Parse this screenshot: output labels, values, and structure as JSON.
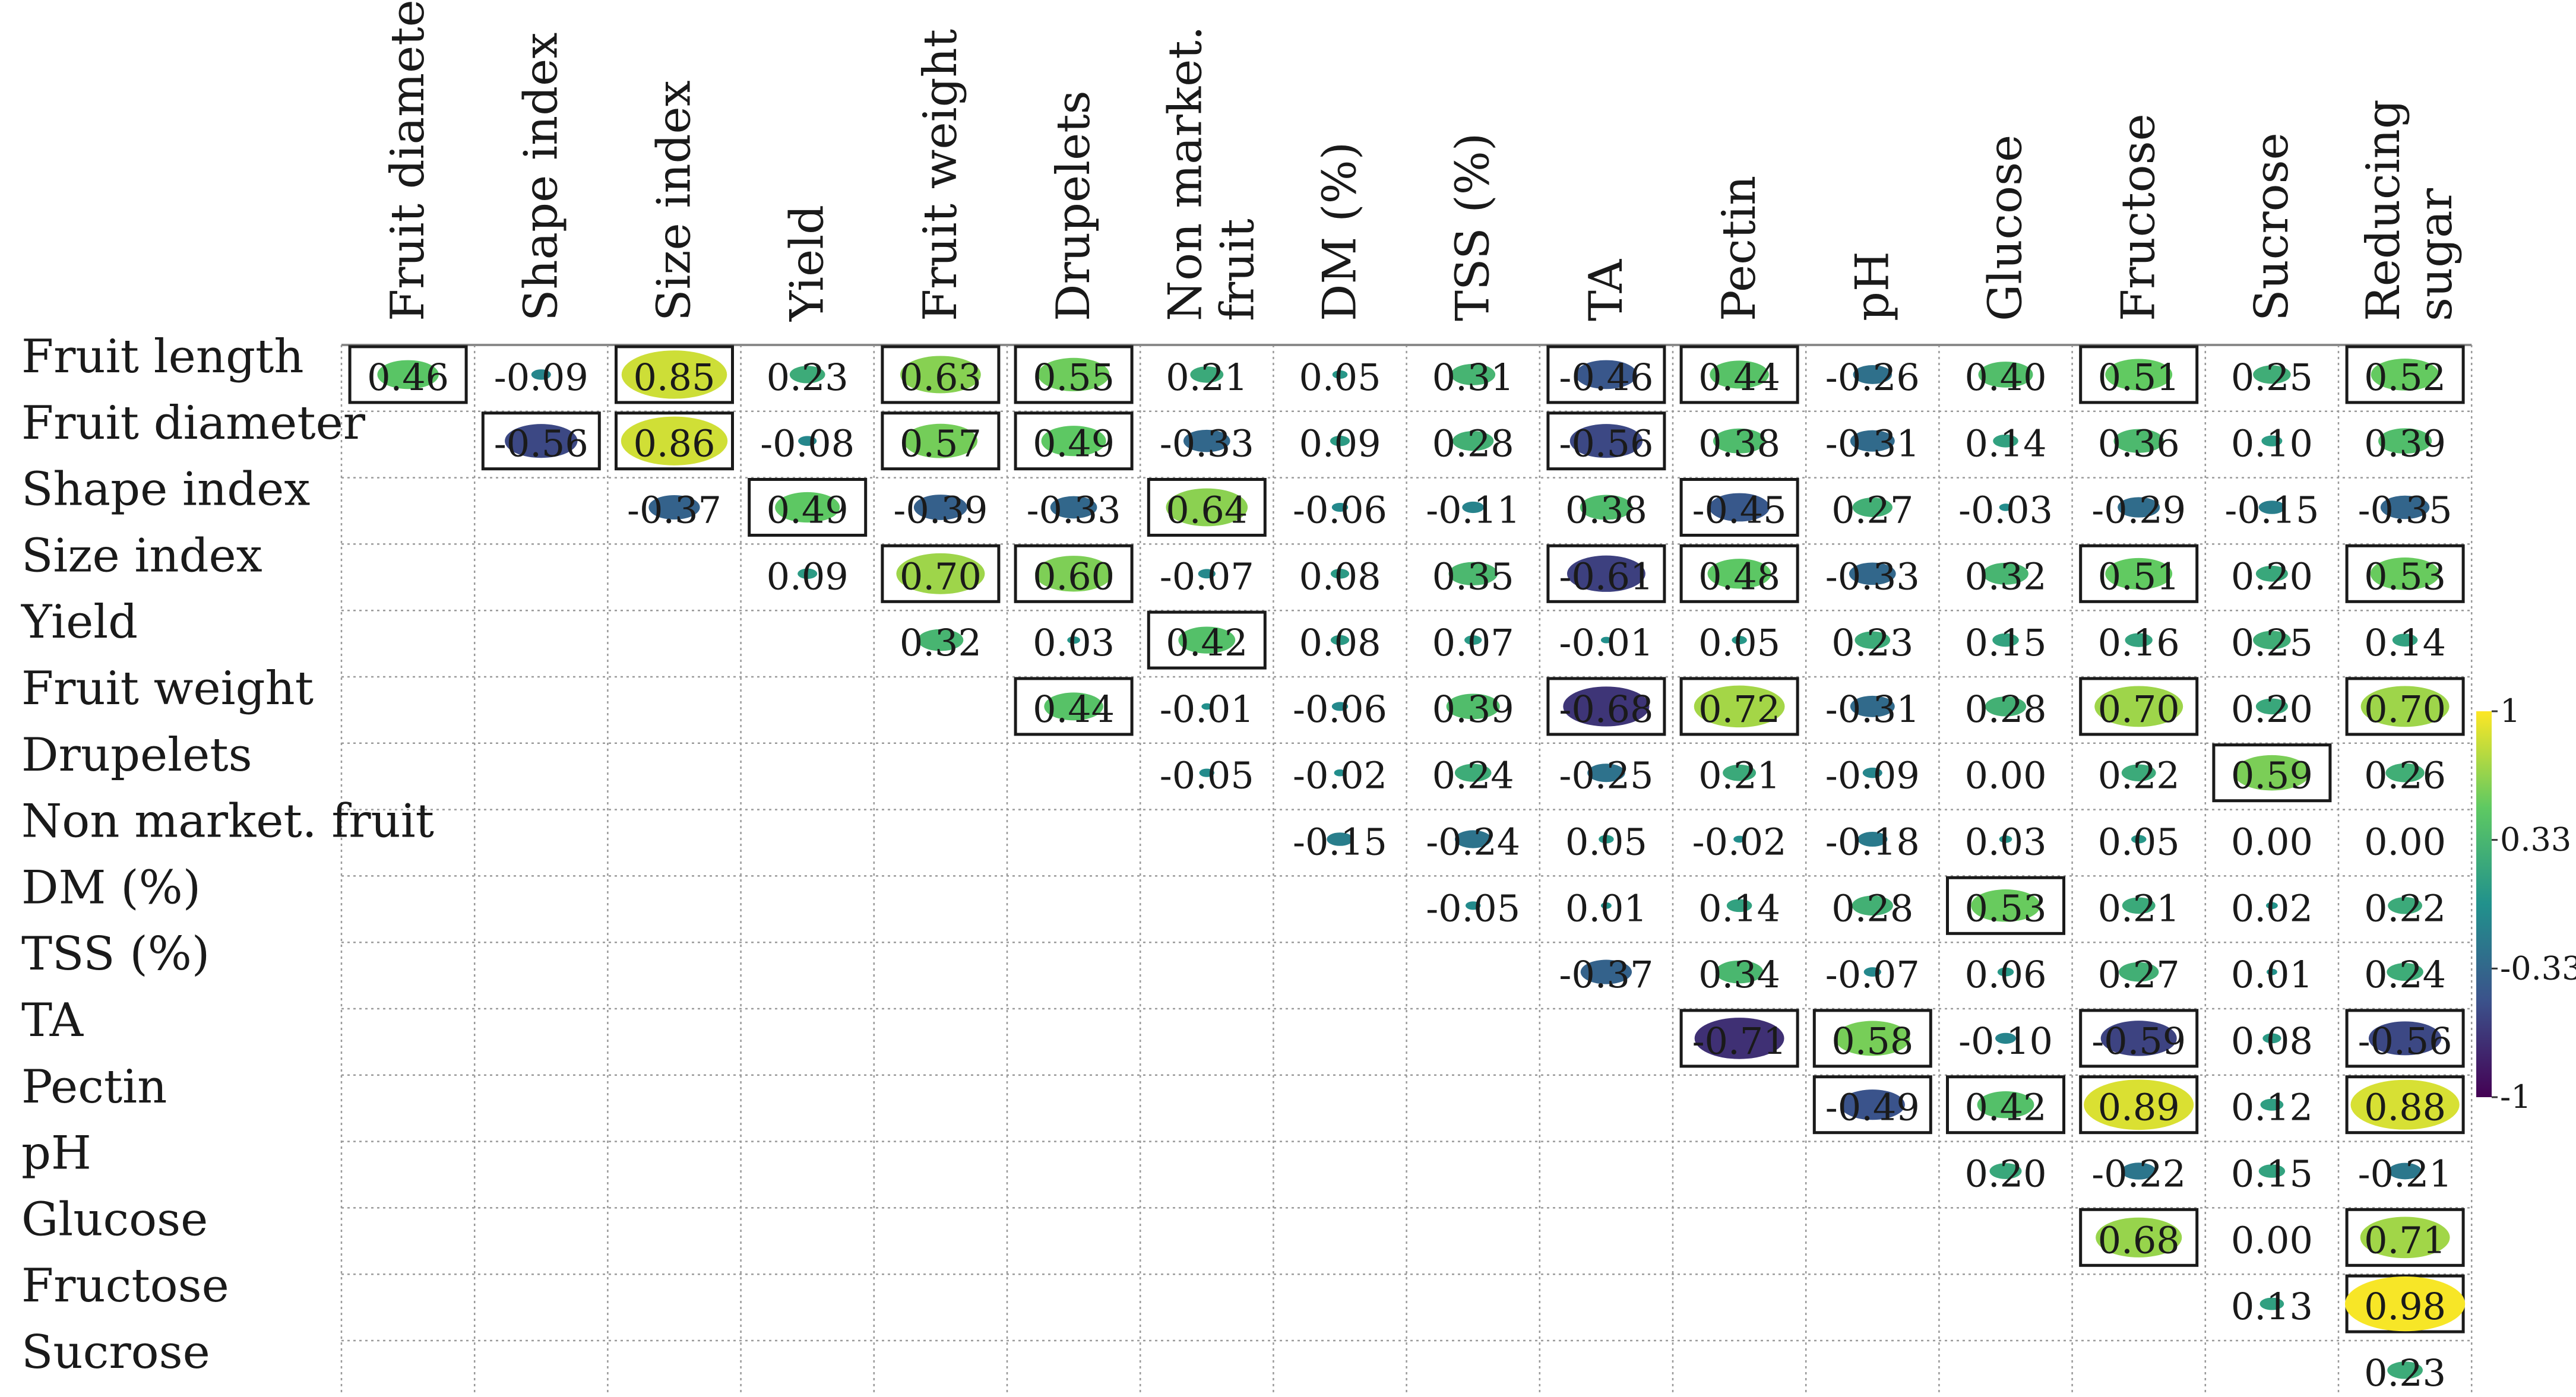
{
  "chart_data": {
    "type": "heatmap",
    "subtype": "correlogram-upper-triangle",
    "title": "",
    "columns": [
      "Fruit diameter",
      "Shape index",
      "Size index",
      "Yield",
      "Fruit weight",
      "Drupelets",
      "Non market. fruit",
      "DM (%)",
      "TSS (%)",
      "TA",
      "Pectin",
      "pH",
      "Glucose",
      "Fructose",
      "Sucrose",
      "Reducing sugar"
    ],
    "column_display": [
      [
        "Fruit diameter"
      ],
      [
        "Shape index"
      ],
      [
        "Size index"
      ],
      [
        "Yield"
      ],
      [
        "Fruit weight"
      ],
      [
        "Drupelets"
      ],
      [
        "Non market.",
        "fruit"
      ],
      [
        "DM (%)"
      ],
      [
        "TSS (%)"
      ],
      [
        "TA"
      ],
      [
        "Pectin"
      ],
      [
        "pH"
      ],
      [
        "Glucose"
      ],
      [
        "Fructose"
      ],
      [
        "Sucrose"
      ],
      [
        "Reducing",
        "sugar"
      ]
    ],
    "rows": [
      "Fruit length",
      "Fruit diameter",
      "Shape index",
      "Size index",
      "Yield",
      "Fruit weight",
      "Drupelets",
      "Non market. fruit",
      "DM (%)",
      "TSS (%)",
      "TA",
      "Pectin",
      "pH",
      "Glucose",
      "Fructose",
      "Sucrose"
    ],
    "values": [
      [
        "0.46",
        "-0.09",
        "0.85",
        "0.23",
        "0.63",
        "0.55",
        "0.21",
        "0.05",
        "0.31",
        "-0.46",
        "0.44",
        "-0.26",
        "0.40",
        "0.51",
        "0.25",
        "0.52"
      ],
      [
        null,
        "-0.56",
        "0.86",
        "-0.08",
        "0.57",
        "0.49",
        "-0.33",
        "0.09",
        "0.28",
        "-0.56",
        "0.38",
        "-0.31",
        "0.14",
        "0.36",
        "0.10",
        "0.39"
      ],
      [
        null,
        null,
        "-0.37",
        "0.49",
        "-0.39",
        "-0.33",
        "0.64",
        "-0.06",
        "-0.11",
        "0.38",
        "-0.45",
        "0.27",
        "-0.03",
        "-0.29",
        "-0.15",
        "-0.35"
      ],
      [
        null,
        null,
        null,
        "0.09",
        "0.70",
        "0.60",
        "-0.07",
        "0.08",
        "0.35",
        "-0.61",
        "0.48",
        "-0.33",
        "0.32",
        "0.51",
        "0.20",
        "0.53"
      ],
      [
        null,
        null,
        null,
        null,
        "0.32",
        "0.03",
        "0.42",
        "0.08",
        "0.07",
        "-0.01",
        "0.05",
        "0.23",
        "0.15",
        "0.16",
        "0.25",
        "0.14"
      ],
      [
        null,
        null,
        null,
        null,
        null,
        "0.44",
        "-0.01",
        "-0.06",
        "0.39",
        "-0.68",
        "0.72",
        "-0.31",
        "0.28",
        "0.70",
        "0.20",
        "0.70"
      ],
      [
        null,
        null,
        null,
        null,
        null,
        null,
        "-0.05",
        "-0.02",
        "0.24",
        "-0.25",
        "0.21",
        "-0.09",
        "0.00",
        "0.22",
        "0.59",
        "0.26"
      ],
      [
        null,
        null,
        null,
        null,
        null,
        null,
        null,
        "-0.15",
        "-0.24",
        "0.05",
        "-0.02",
        "-0.18",
        "0.03",
        "0.05",
        "0.00",
        "0.00"
      ],
      [
        null,
        null,
        null,
        null,
        null,
        null,
        null,
        null,
        "-0.05",
        "0.01",
        "0.14",
        "0.28",
        "0.53",
        "0.21",
        "0.02",
        "0.22"
      ],
      [
        null,
        null,
        null,
        null,
        null,
        null,
        null,
        null,
        null,
        "-0.37",
        "0.34",
        "-0.07",
        "0.06",
        "0.27",
        "0.01",
        "0.24"
      ],
      [
        null,
        null,
        null,
        null,
        null,
        null,
        null,
        null,
        null,
        null,
        "-0.71",
        "0.58",
        "-0.10",
        "-0.59",
        "0.08",
        "-0.56"
      ],
      [
        null,
        null,
        null,
        null,
        null,
        null,
        null,
        null,
        null,
        null,
        null,
        "-0.49",
        "0.42",
        "0.89",
        "0.12",
        "0.88"
      ],
      [
        null,
        null,
        null,
        null,
        null,
        null,
        null,
        null,
        null,
        null,
        null,
        null,
        "0.20",
        "-0.22",
        "0.15",
        "-0.21"
      ],
      [
        null,
        null,
        null,
        null,
        null,
        null,
        null,
        null,
        null,
        null,
        null,
        null,
        null,
        "0.68",
        "0.00",
        "0.71"
      ],
      [
        null,
        null,
        null,
        null,
        null,
        null,
        null,
        null,
        null,
        null,
        null,
        null,
        null,
        null,
        "0.13",
        "0.98"
      ],
      [
        null,
        null,
        null,
        null,
        null,
        null,
        null,
        null,
        null,
        null,
        null,
        null,
        null,
        null,
        null,
        "0.23"
      ]
    ],
    "significant": [
      [
        true,
        false,
        true,
        false,
        true,
        true,
        false,
        false,
        false,
        true,
        true,
        false,
        false,
        true,
        false,
        true
      ],
      [
        false,
        true,
        true,
        false,
        true,
        true,
        false,
        false,
        false,
        true,
        false,
        false,
        false,
        false,
        false,
        false
      ],
      [
        false,
        false,
        false,
        true,
        false,
        false,
        true,
        false,
        false,
        false,
        true,
        false,
        false,
        false,
        false,
        false
      ],
      [
        false,
        false,
        false,
        false,
        true,
        true,
        false,
        false,
        false,
        true,
        true,
        false,
        false,
        true,
        false,
        true
      ],
      [
        false,
        false,
        false,
        false,
        false,
        false,
        true,
        false,
        false,
        false,
        false,
        false,
        false,
        false,
        false,
        false
      ],
      [
        false,
        false,
        false,
        false,
        false,
        true,
        false,
        false,
        false,
        true,
        true,
        false,
        false,
        true,
        false,
        true
      ],
      [
        false,
        false,
        false,
        false,
        false,
        false,
        false,
        false,
        false,
        false,
        false,
        false,
        false,
        false,
        true,
        false
      ],
      [
        false,
        false,
        false,
        false,
        false,
        false,
        false,
        false,
        false,
        false,
        false,
        false,
        false,
        false,
        false,
        false
      ],
      [
        false,
        false,
        false,
        false,
        false,
        false,
        false,
        false,
        false,
        false,
        false,
        false,
        true,
        false,
        false,
        false
      ],
      [
        false,
        false,
        false,
        false,
        false,
        false,
        false,
        false,
        false,
        false,
        false,
        false,
        false,
        false,
        false,
        false
      ],
      [
        false,
        false,
        false,
        false,
        false,
        false,
        false,
        false,
        false,
        false,
        true,
        true,
        false,
        true,
        false,
        true
      ],
      [
        false,
        false,
        false,
        false,
        false,
        false,
        false,
        false,
        false,
        false,
        false,
        true,
        true,
        true,
        false,
        true
      ],
      [
        false,
        false,
        false,
        false,
        false,
        false,
        false,
        false,
        false,
        false,
        false,
        false,
        false,
        false,
        false,
        false
      ],
      [
        false,
        false,
        false,
        false,
        false,
        false,
        false,
        false,
        false,
        false,
        false,
        false,
        false,
        true,
        false,
        true
      ],
      [
        false,
        false,
        false,
        false,
        false,
        false,
        false,
        false,
        false,
        false,
        false,
        false,
        false,
        false,
        false,
        true
      ],
      [
        false,
        false,
        false,
        false,
        false,
        false,
        false,
        false,
        false,
        false,
        false,
        false,
        false,
        false,
        false,
        false
      ]
    ],
    "colorbar": {
      "range": [
        -1,
        1
      ],
      "ticks": [
        "1",
        "0.33",
        "-0.33",
        "-1"
      ],
      "colors": [
        "#fde725",
        "#5ec962",
        "#21918c",
        "#3b528b",
        "#440154"
      ]
    },
    "grid": true,
    "legend": "right"
  }
}
